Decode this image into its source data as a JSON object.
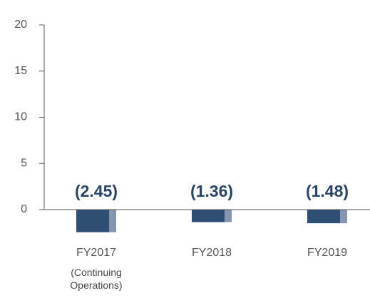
{
  "chart_data": {
    "type": "bar",
    "categories": [
      "FY2017",
      "FY2018",
      "FY2019"
    ],
    "values": [
      -2.45,
      -1.36,
      -1.48
    ],
    "value_labels": [
      "(2.45)",
      "(1.36)",
      "(1.48)"
    ],
    "annotations": [
      "(Continuing Operations)"
    ],
    "color": "#2e4e73",
    "accent_color": "#8595b0",
    "ylim": [
      0,
      20
    ],
    "yticks": [
      0,
      5,
      10,
      15,
      20
    ]
  }
}
